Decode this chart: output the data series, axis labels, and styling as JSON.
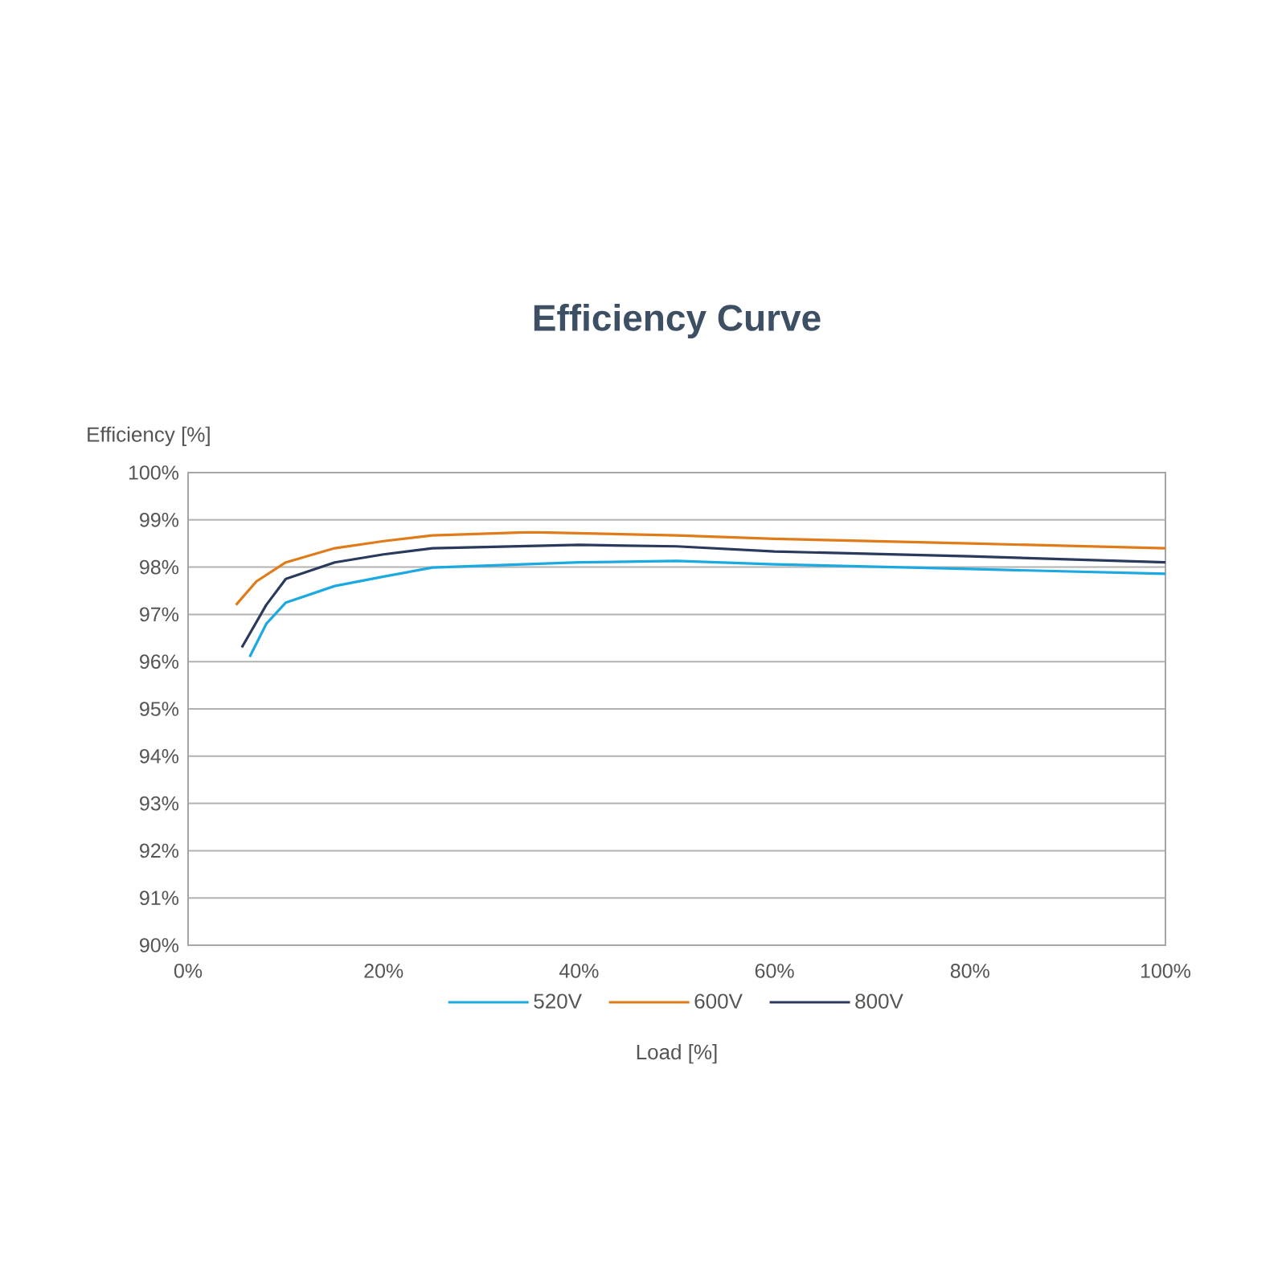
{
  "chart_data": {
    "type": "line",
    "title": "Efficiency Curve",
    "xlabel": "Load [%]",
    "ylabel": "Efficiency [%]",
    "xlim": [
      0,
      100
    ],
    "ylim": [
      90,
      100
    ],
    "xticks": [
      {
        "value": 0,
        "label": "0%"
      },
      {
        "value": 20,
        "label": "20%"
      },
      {
        "value": 40,
        "label": "40%"
      },
      {
        "value": 60,
        "label": "60%"
      },
      {
        "value": 80,
        "label": "80%"
      },
      {
        "value": 100,
        "label": "100%"
      }
    ],
    "yticks": [
      {
        "value": 90,
        "label": "90%"
      },
      {
        "value": 91,
        "label": "91%"
      },
      {
        "value": 92,
        "label": "92%"
      },
      {
        "value": 93,
        "label": "93%"
      },
      {
        "value": 94,
        "label": "94%"
      },
      {
        "value": 95,
        "label": "95%"
      },
      {
        "value": 96,
        "label": "96%"
      },
      {
        "value": 97,
        "label": "97%"
      },
      {
        "value": 98,
        "label": "98%"
      },
      {
        "value": 99,
        "label": "99%"
      },
      {
        "value": 100,
        "label": "100%"
      }
    ],
    "grid": "y",
    "legend": "bottom",
    "marker": "none",
    "line_style": "solid",
    "series": [
      {
        "name": "520V",
        "color": "#1ba9e1",
        "x": [
          6.3,
          8,
          10,
          15,
          20,
          25,
          40,
          50,
          60,
          80,
          100
        ],
        "values": [
          96.1,
          96.8,
          97.25,
          97.6,
          97.8,
          97.99,
          98.1,
          98.13,
          98.06,
          97.96,
          97.86
        ]
      },
      {
        "name": "600V",
        "color": "#e07b1a",
        "x": [
          4.9,
          7,
          10,
          15,
          20,
          25,
          35,
          50,
          60,
          80,
          100
        ],
        "values": [
          97.2,
          97.7,
          98.1,
          98.4,
          98.55,
          98.67,
          98.74,
          98.67,
          98.6,
          98.5,
          98.4
        ]
      },
      {
        "name": "800V",
        "color": "#2a3a5c",
        "x": [
          5.5,
          8,
          10,
          15,
          20,
          25,
          40,
          50,
          60,
          80,
          100
        ],
        "values": [
          96.3,
          97.2,
          97.75,
          98.1,
          98.27,
          98.4,
          98.47,
          98.44,
          98.33,
          98.23,
          98.1
        ]
      }
    ]
  }
}
